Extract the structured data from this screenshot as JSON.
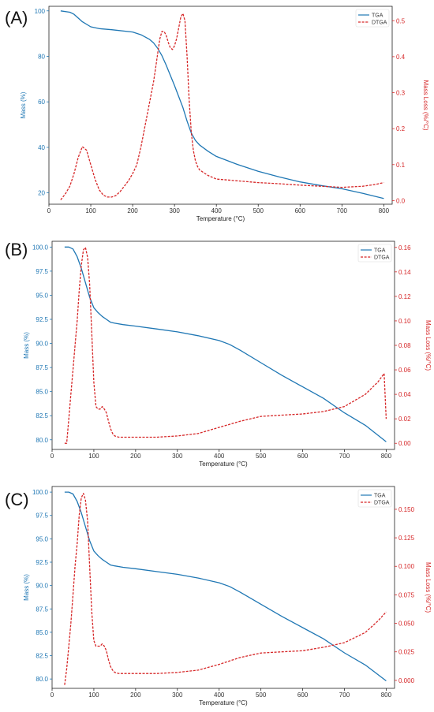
{
  "chart_data": [
    {
      "panel": "(A)",
      "type": "line",
      "xlabel": "Temperature (°C)",
      "ylabel": "Mass (%)",
      "y2label": "Mass Loss (%/°C)",
      "xlim": [
        0,
        820
      ],
      "ylim": [
        15,
        102
      ],
      "y2lim": [
        -0.01,
        0.54
      ],
      "xticks": [
        "0",
        "100",
        "200",
        "300",
        "400",
        "500",
        "600",
        "700",
        "800"
      ],
      "yticks": [
        "20",
        "40",
        "60",
        "80",
        "100"
      ],
      "y2ticks": [
        "0.0",
        "0.1",
        "0.2",
        "0.3",
        "0.4",
        "0.5"
      ],
      "legend": "top-right",
      "colors": {
        "tga": "#1f77b4",
        "dtga": "#d62728"
      },
      "series": [
        {
          "name": "TGA",
          "style": "solid",
          "axis": "left",
          "x": [
            28,
            50,
            60,
            80,
            100,
            120,
            150,
            200,
            220,
            240,
            250,
            260,
            270,
            280,
            300,
            320,
            330,
            340,
            350,
            360,
            380,
            400,
            450,
            500,
            550,
            600,
            650,
            700,
            750,
            800
          ],
          "y": [
            100,
            99.4,
            98.5,
            95.2,
            93,
            92.2,
            91.7,
            90.7,
            89.5,
            87.5,
            85.9,
            83.5,
            80.3,
            76.2,
            67.2,
            57.5,
            51.5,
            46.3,
            43,
            41,
            38.3,
            36,
            32.5,
            29.5,
            27,
            24.8,
            23.2,
            21.8,
            19.8,
            17.5
          ]
        },
        {
          "name": "DTGA",
          "style": "dashed",
          "axis": "right",
          "x": [
            28,
            40,
            50,
            60,
            70,
            80,
            90,
            100,
            110,
            120,
            130,
            140,
            150,
            160,
            170,
            180,
            190,
            200,
            210,
            220,
            230,
            240,
            250,
            255,
            260,
            265,
            270,
            275,
            280,
            285,
            290,
            295,
            300,
            305,
            310,
            315,
            320,
            325,
            330,
            335,
            340,
            345,
            350,
            355,
            360,
            380,
            400,
            450,
            500,
            550,
            600,
            650,
            700,
            750,
            780,
            800
          ],
          "y": [
            0.002,
            0.02,
            0.04,
            0.075,
            0.12,
            0.15,
            0.14,
            0.1,
            0.06,
            0.03,
            0.015,
            0.01,
            0.01,
            0.014,
            0.025,
            0.04,
            0.055,
            0.075,
            0.1,
            0.15,
            0.21,
            0.27,
            0.33,
            0.37,
            0.41,
            0.45,
            0.47,
            0.47,
            0.46,
            0.44,
            0.425,
            0.42,
            0.43,
            0.45,
            0.48,
            0.51,
            0.52,
            0.5,
            0.4,
            0.28,
            0.19,
            0.14,
            0.11,
            0.095,
            0.085,
            0.07,
            0.06,
            0.055,
            0.05,
            0.047,
            0.043,
            0.04,
            0.037,
            0.04,
            0.045,
            0.05
          ]
        }
      ]
    },
    {
      "panel": "(B)",
      "type": "line",
      "xlabel": "Temperature (°C)",
      "ylabel": "Mass (%)",
      "y2label": "Mass Loss (%/°C)",
      "xlim": [
        0,
        820
      ],
      "ylim": [
        79.0,
        100.6
      ],
      "y2lim": [
        -0.005,
        0.165
      ],
      "xticks": [
        "0",
        "100",
        "200",
        "300",
        "400",
        "500",
        "600",
        "700",
        "800"
      ],
      "yticks": [
        "80.0",
        "82.5",
        "85.0",
        "87.5",
        "90.0",
        "92.5",
        "95.0",
        "97.5",
        "100.0"
      ],
      "y2ticks": [
        "0.00",
        "0.02",
        "0.04",
        "0.06",
        "0.08",
        "0.10",
        "0.12",
        "0.14",
        "0.16"
      ],
      "legend": "top-right",
      "colors": {
        "tga": "#1f77b4",
        "dtga": "#d62728"
      },
      "series": [
        {
          "name": "TGA",
          "style": "solid",
          "axis": "left",
          "x": [
            30,
            40,
            50,
            60,
            70,
            80,
            90,
            100,
            110,
            120,
            130,
            140,
            150,
            170,
            200,
            250,
            300,
            350,
            400,
            425,
            450,
            500,
            550,
            600,
            650,
            700,
            750,
            800
          ],
          "y": [
            100,
            100,
            99.8,
            99,
            97.8,
            96.3,
            94.8,
            93.7,
            93.2,
            92.8,
            92.5,
            92.2,
            92.1,
            91.95,
            91.8,
            91.5,
            91.2,
            90.8,
            90.3,
            89.9,
            89.3,
            88,
            86.7,
            85.5,
            84.3,
            82.8,
            81.5,
            79.8
          ]
        },
        {
          "name": "DTGA",
          "style": "dashed",
          "axis": "right",
          "x": [
            30,
            35,
            40,
            45,
            50,
            55,
            60,
            65,
            70,
            75,
            80,
            85,
            90,
            95,
            100,
            105,
            110,
            115,
            120,
            125,
            130,
            135,
            140,
            145,
            150,
            160,
            170,
            180,
            200,
            250,
            300,
            350,
            400,
            450,
            500,
            550,
            600,
            650,
            700,
            750,
            780,
            795,
            800
          ],
          "y": [
            0,
            0,
            0.02,
            0.04,
            0.06,
            0.08,
            0.1,
            0.125,
            0.145,
            0.158,
            0.16,
            0.152,
            0.13,
            0.09,
            0.05,
            0.03,
            0.028,
            0.028,
            0.03,
            0.028,
            0.025,
            0.018,
            0.012,
            0.008,
            0.006,
            0.005,
            0.005,
            0.005,
            0.005,
            0.005,
            0.006,
            0.008,
            0.013,
            0.018,
            0.022,
            0.023,
            0.024,
            0.026,
            0.03,
            0.04,
            0.05,
            0.057,
            0.02
          ]
        }
      ]
    },
    {
      "panel": "(C)",
      "type": "line",
      "xlabel": "Temperature (°C)",
      "ylabel": "Mass (%)",
      "y2label": "Mass Loss (%/°C)",
      "xlim": [
        0,
        820
      ],
      "ylim": [
        79.0,
        100.6
      ],
      "y2lim": [
        -0.007,
        0.17
      ],
      "xticks": [
        "0",
        "100",
        "200",
        "300",
        "400",
        "500",
        "600",
        "700",
        "800"
      ],
      "yticks": [
        "80.0",
        "82.5",
        "85.0",
        "87.5",
        "90.0",
        "92.5",
        "95.0",
        "97.5",
        "100.0"
      ],
      "y2ticks": [
        "0.000",
        "0.025",
        "0.050",
        "0.075",
        "0.100",
        "0.125",
        "0.150"
      ],
      "legend": "top-right",
      "colors": {
        "tga": "#1f77b4",
        "dtga": "#d62728"
      },
      "series": [
        {
          "name": "TGA",
          "style": "solid",
          "axis": "left",
          "x": [
            30,
            40,
            50,
            60,
            70,
            80,
            90,
            100,
            110,
            120,
            130,
            140,
            150,
            170,
            200,
            250,
            300,
            350,
            400,
            425,
            450,
            500,
            550,
            600,
            650,
            700,
            750,
            800
          ],
          "y": [
            100,
            100,
            99.8,
            99,
            97.8,
            96.3,
            94.8,
            93.7,
            93.2,
            92.8,
            92.5,
            92.2,
            92.1,
            91.95,
            91.8,
            91.5,
            91.2,
            90.8,
            90.3,
            89.9,
            89.3,
            88,
            86.7,
            85.5,
            84.3,
            82.8,
            81.5,
            79.8
          ]
        },
        {
          "name": "DTGA",
          "style": "dashed",
          "axis": "right",
          "x": [
            30,
            35,
            40,
            45,
            50,
            55,
            60,
            65,
            70,
            75,
            80,
            85,
            90,
            95,
            100,
            105,
            110,
            115,
            120,
            125,
            130,
            135,
            140,
            145,
            150,
            160,
            170,
            180,
            200,
            250,
            300,
            350,
            400,
            450,
            500,
            550,
            600,
            650,
            700,
            750,
            780,
            800
          ],
          "y": [
            -0.004,
            0.01,
            0.03,
            0.05,
            0.075,
            0.1,
            0.12,
            0.145,
            0.16,
            0.164,
            0.158,
            0.14,
            0.1,
            0.06,
            0.035,
            0.03,
            0.03,
            0.03,
            0.032,
            0.03,
            0.026,
            0.018,
            0.012,
            0.009,
            0.007,
            0.006,
            0.006,
            0.006,
            0.006,
            0.006,
            0.007,
            0.009,
            0.014,
            0.02,
            0.024,
            0.025,
            0.026,
            0.029,
            0.033,
            0.042,
            0.052,
            0.06
          ]
        }
      ]
    }
  ]
}
